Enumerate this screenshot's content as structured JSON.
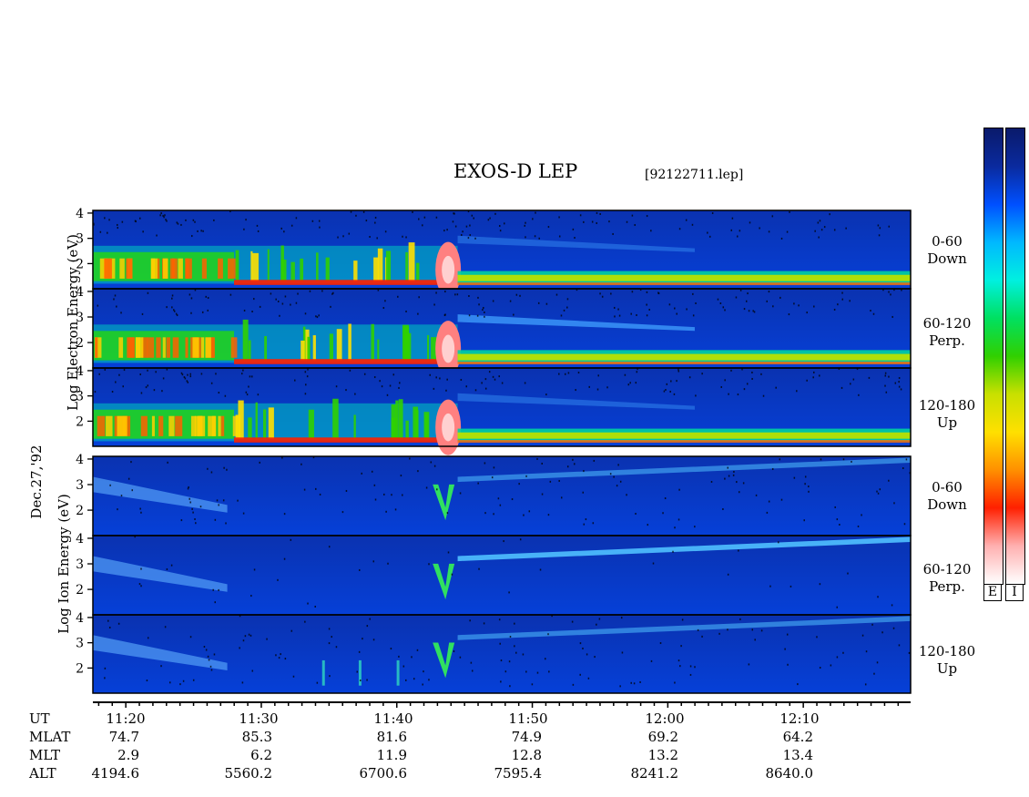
{
  "title": "EXOS-D LEP",
  "file_id": "[92122711.lep]",
  "date": "Dec.27,'92",
  "electron": {
    "axis_title": "Log Electron Energy (eV)",
    "panels": [
      {
        "angle": "0-60",
        "direction": "Down"
      },
      {
        "angle": "60-120",
        "direction": "Perp."
      },
      {
        "angle": "120-180",
        "direction": "Up"
      }
    ]
  },
  "ion": {
    "axis_title": "Log Ion Energy (eV)",
    "panels": [
      {
        "angle": "0-60",
        "direction": "Down"
      },
      {
        "angle": "60-120",
        "direction": "Perp."
      },
      {
        "angle": "120-180",
        "direction": "Up"
      }
    ]
  },
  "y_ticks": [
    "4",
    "3",
    "2"
  ],
  "colorbars": {
    "labels": [
      "E",
      "I"
    ],
    "gradient": [
      "#0a1a6b",
      "#0a2a9e",
      "#0050ff",
      "#00b8ff",
      "#00f0e0",
      "#00e060",
      "#30d000",
      "#c8e000",
      "#ffe000",
      "#ff9000",
      "#ff2000",
      "#ffb0b0",
      "#ffffff"
    ]
  },
  "footer": {
    "rows": [
      {
        "label": "UT",
        "values": [
          "11:20",
          "11:30",
          "11:40",
          "11:50",
          "12:00",
          "12:10"
        ]
      },
      {
        "label": "MLAT",
        "values": [
          "74.7",
          "85.3",
          "81.6",
          "74.9",
          "69.2",
          "64.2"
        ]
      },
      {
        "label": "MLT",
        "values": [
          "2.9",
          "6.2",
          "11.9",
          "12.8",
          "13.2",
          "13.4"
        ]
      },
      {
        "label": "ALT",
        "values": [
          "4194.6",
          "5560.2",
          "6700.6",
          "7595.4",
          "8241.2",
          "8640.0"
        ]
      }
    ]
  },
  "chart_data": {
    "type": "heatmap",
    "title": "EXOS-D LEP",
    "x": {
      "label": "UT",
      "range": [
        "11:16",
        "12:17"
      ],
      "major_ticks": [
        "11:20",
        "11:30",
        "11:40",
        "11:50",
        "12:00",
        "12:10"
      ]
    },
    "y": {
      "label": "Log Energy (eV)",
      "range": [
        1,
        4.1
      ],
      "ticks": [
        2,
        3,
        4
      ]
    },
    "colors": {
      "low": "#0a2a9e",
      "mid": "#00e060",
      "high": "#ff2000"
    },
    "panels": [
      {
        "species": "Electron",
        "pitch_angle": "0-60",
        "direction": "Down"
      },
      {
        "species": "Electron",
        "pitch_angle": "60-120",
        "direction": "Perp."
      },
      {
        "species": "Electron",
        "pitch_angle": "120-180",
        "direction": "Up"
      },
      {
        "species": "Ion",
        "pitch_angle": "0-60",
        "direction": "Down"
      },
      {
        "species": "Ion",
        "pitch_angle": "60-120",
        "direction": "Perp."
      },
      {
        "species": "Ion",
        "pitch_angle": "120-180",
        "direction": "Up"
      }
    ]
  }
}
